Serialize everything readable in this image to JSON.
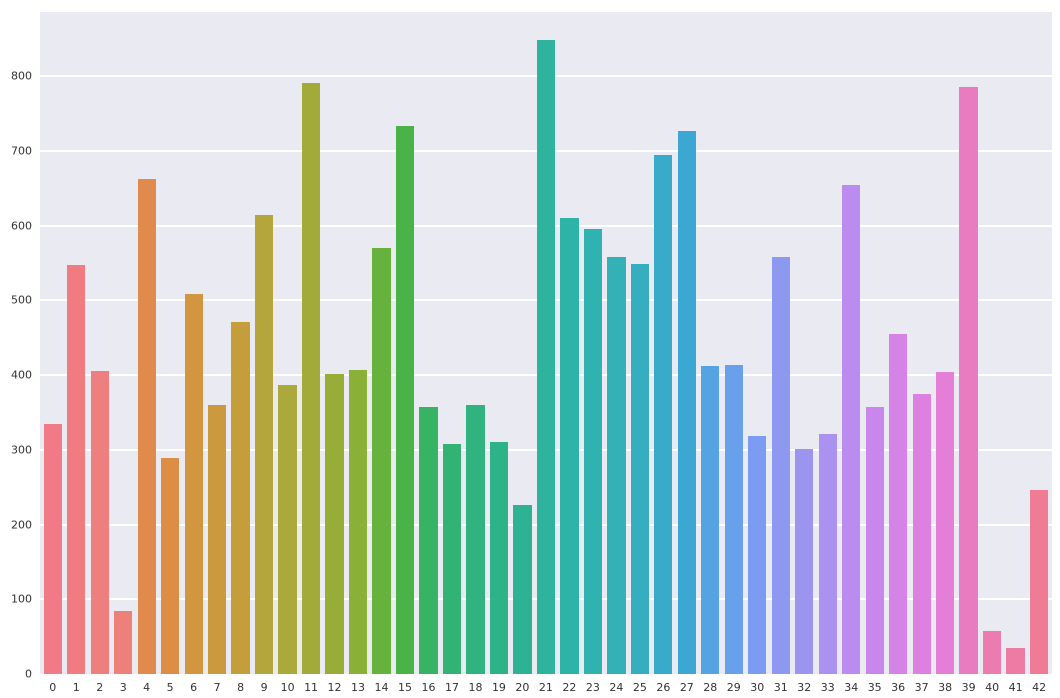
{
  "chart_data": {
    "type": "bar",
    "title": "",
    "xlabel": "",
    "ylabel": "",
    "categories": [
      "0",
      "1",
      "2",
      "3",
      "4",
      "5",
      "6",
      "7",
      "8",
      "9",
      "10",
      "11",
      "12",
      "13",
      "14",
      "15",
      "16",
      "17",
      "18",
      "19",
      "20",
      "21",
      "22",
      "23",
      "24",
      "25",
      "26",
      "27",
      "28",
      "29",
      "30",
      "31",
      "32",
      "33",
      "34",
      "35",
      "36",
      "37",
      "38",
      "39",
      "40",
      "41",
      "42"
    ],
    "values": [
      335,
      548,
      405,
      85,
      663,
      289,
      509,
      360,
      471,
      614,
      387,
      791,
      401,
      407,
      570,
      733,
      357,
      308,
      360,
      311,
      226,
      848,
      610,
      595,
      558,
      549,
      695,
      727,
      412,
      414,
      319,
      558,
      301,
      321,
      655,
      357,
      455,
      375,
      404,
      786,
      57,
      35,
      246
    ],
    "palette": [
      "#f07b86",
      "#f07c82",
      "#ef7e7e",
      "#ed817a",
      "#e18a4e",
      "#dd8e46",
      "#d29641",
      "#cc9a3e",
      "#c49e3b",
      "#b4a63c",
      "#aba93a",
      "#a2ab39",
      "#96ae38",
      "#8bb037",
      "#66b23c",
      "#49b347",
      "#37b364",
      "#33b373",
      "#30b37e",
      "#2eb389",
      "#2db393",
      "#2db39e",
      "#2eb3a8",
      "#30b2b0",
      "#33b1b6",
      "#36aec0",
      "#39abca",
      "#3da7d3",
      "#55a3e2",
      "#68a0ec",
      "#7b9cf0",
      "#8d99f0",
      "#9c95f0",
      "#ab91f0",
      "#bb8cf0",
      "#c987ee",
      "#d683e8",
      "#de80e0",
      "#e47ed6",
      "#e97cc0",
      "#ec7bb0",
      "#ee7ba3",
      "#ef7b95"
    ],
    "yticks": [
      0,
      100,
      200,
      300,
      400,
      500,
      600,
      700,
      800
    ],
    "ylim": [
      0,
      886
    ],
    "grid": true,
    "legend": "none",
    "plot_background": "#eaeaf2",
    "figure_background": "#ffffff",
    "gridline_color": "#ffffff",
    "tick_label_color": "#333333"
  }
}
